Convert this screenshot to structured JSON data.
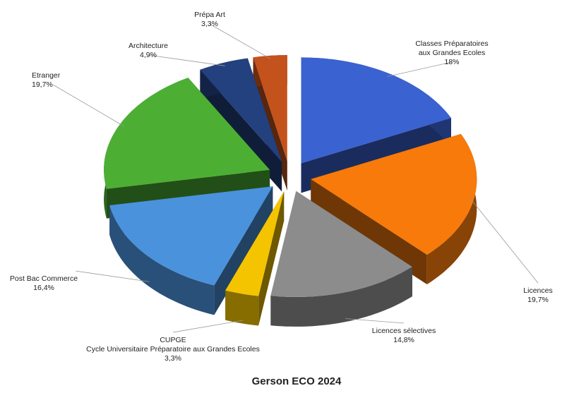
{
  "chart_data": {
    "type": "pie",
    "title": "Gerson ECO 2024",
    "categories": [
      "Classes Préparatoires\naux Grandes Ecoles",
      "Licences",
      "Licences sélectives",
      "CUPGE\nCycle Universitaire Préparatoire aux Grandes Ecoles",
      "Post Bac Commerce",
      "Etranger",
      "Architecture",
      "Prépa Art"
    ],
    "values": [
      18,
      19.7,
      14.8,
      3.3,
      16.4,
      19.7,
      4.9,
      3.3
    ],
    "value_labels": [
      "18%",
      "19,7%",
      "14,8%",
      "3,3%",
      "16,4%",
      "19,7%",
      "4,9%",
      "3,3%"
    ],
    "colors": [
      "#3a62d0",
      "#f77a0a",
      "#8c8c8c",
      "#f5c400",
      "#4a92dc",
      "#4caf33",
      "#23407f",
      "#c4521c"
    ]
  }
}
